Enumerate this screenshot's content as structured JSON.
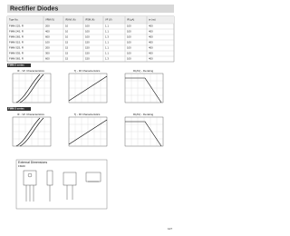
{
  "header": {
    "title": "Rectifier Diodes"
  },
  "table": {
    "columns": [
      "Type No.",
      "VRM (V)",
      "IF(AV) (A)",
      "IFSM (A)",
      "VF (V)",
      "IR (μA)",
      "trr (ns)"
    ],
    "rows": [
      [
        "FMM-22S, R",
        "200",
        "10",
        "100",
        "1.1",
        "100",
        "400"
      ],
      [
        "FMM-24S, R",
        "400",
        "10",
        "100",
        "1.1",
        "100",
        "400"
      ],
      [
        "FMM-26S, R",
        "600",
        "10",
        "100",
        "1.3",
        "100",
        "400"
      ],
      [
        "FMM-31S, R",
        "100",
        "15",
        "150",
        "1.1",
        "100",
        "400"
      ],
      [
        "FMM-32S, R",
        "200",
        "15",
        "150",
        "1.1",
        "100",
        "400"
      ],
      [
        "FMM-33S, R",
        "300",
        "15",
        "150",
        "1.1",
        "100",
        "400"
      ],
      [
        "FMM-36S, R",
        "600",
        "15",
        "150",
        "1.3",
        "100",
        "400"
      ]
    ]
  },
  "sections": [
    {
      "title": "FMM-2 series",
      "graphs": [
        "IF - VF Characteristics",
        "Tj - IR Characteristics",
        "IF(AV) - Derating"
      ]
    },
    {
      "title": "FMM-3 series",
      "graphs": [
        "IF - VF Characteristics",
        "Tj - IR Characteristics",
        "IF(AV) - Derating"
      ]
    }
  ],
  "dimensions": {
    "title": "External Dimensions",
    "package": "FM20"
  },
  "footer": {
    "page": "127"
  }
}
